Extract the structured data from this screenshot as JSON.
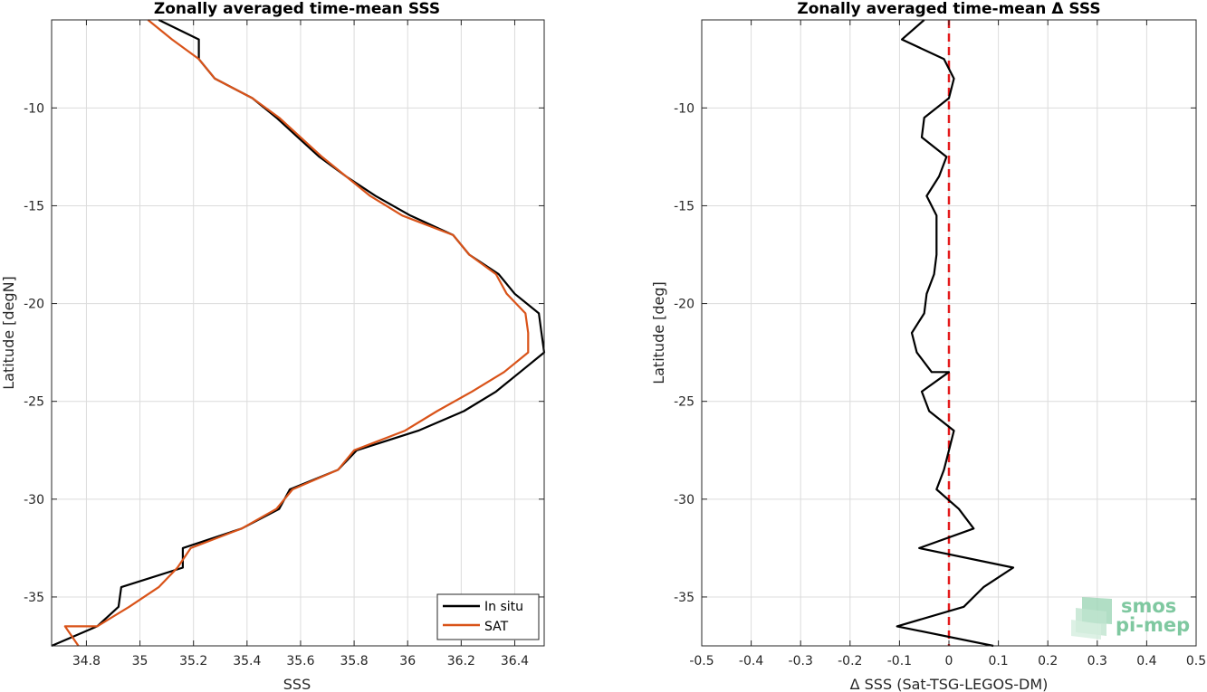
{
  "colors": {
    "insitu": "#000000",
    "sat": "#D95319",
    "zero_line": "#E41A1C",
    "grid": "#DCDCDC",
    "logo": "#7FC8A0"
  },
  "logo": {
    "line1": "smos",
    "line2": "pi-mep"
  },
  "chart_data": [
    {
      "type": "line",
      "title": "Zonally averaged time-mean SSS",
      "xlabel": "SSS",
      "ylabel": "Latitude [degN]",
      "xlim": [
        34.67,
        36.51
      ],
      "ylim": [
        -37.5,
        -5.5
      ],
      "xticks": [
        34.8,
        35,
        35.2,
        35.4,
        35.6,
        35.8,
        36,
        36.2,
        36.4
      ],
      "xtick_labels": [
        "34.8",
        "35",
        "35.2",
        "35.4",
        "35.6",
        "35.8",
        "36",
        "36.2",
        "36.4"
      ],
      "yticks": [
        -10,
        -15,
        -20,
        -25,
        -30,
        -35
      ],
      "ytick_labels": [
        "-10",
        "-15",
        "-20",
        "-25",
        "-30",
        "-35"
      ],
      "grid": true,
      "legend": "bottom-right",
      "legend_entries": [
        "In situ",
        "SAT"
      ],
      "series": [
        {
          "name": "In situ",
          "points": [
            [
              35.07,
              -5.5
            ],
            [
              35.22,
              -6.5
            ],
            [
              35.22,
              -7.5
            ],
            [
              35.28,
              -8.5
            ],
            [
              35.42,
              -9.5
            ],
            [
              35.51,
              -10.5
            ],
            [
              35.59,
              -11.5
            ],
            [
              35.67,
              -12.5
            ],
            [
              35.77,
              -13.5
            ],
            [
              35.88,
              -14.5
            ],
            [
              36.01,
              -15.5
            ],
            [
              36.17,
              -16.5
            ],
            [
              36.23,
              -17.5
            ],
            [
              36.34,
              -18.5
            ],
            [
              36.4,
              -19.5
            ],
            [
              36.49,
              -20.5
            ],
            [
              36.5,
              -21.5
            ],
            [
              36.51,
              -22.5
            ],
            [
              36.42,
              -23.5
            ],
            [
              36.33,
              -24.5
            ],
            [
              36.21,
              -25.5
            ],
            [
              36.04,
              -26.5
            ],
            [
              35.81,
              -27.5
            ],
            [
              35.74,
              -28.5
            ],
            [
              35.56,
              -29.5
            ],
            [
              35.52,
              -30.5
            ],
            [
              35.38,
              -31.5
            ],
            [
              35.16,
              -32.5
            ],
            [
              35.16,
              -33.5
            ],
            [
              34.93,
              -34.5
            ],
            [
              34.92,
              -35.5
            ],
            [
              34.84,
              -36.5
            ],
            [
              34.67,
              -37.5
            ]
          ]
        },
        {
          "name": "SAT",
          "points": [
            [
              35.03,
              -5.5
            ],
            [
              35.12,
              -6.5
            ],
            [
              35.22,
              -7.5
            ],
            [
              35.28,
              -8.5
            ],
            [
              35.42,
              -9.5
            ],
            [
              35.52,
              -10.5
            ],
            [
              35.6,
              -11.5
            ],
            [
              35.68,
              -12.5
            ],
            [
              35.77,
              -13.5
            ],
            [
              35.86,
              -14.5
            ],
            [
              35.98,
              -15.5
            ],
            [
              36.17,
              -16.5
            ],
            [
              36.23,
              -17.5
            ],
            [
              36.33,
              -18.5
            ],
            [
              36.37,
              -19.5
            ],
            [
              36.44,
              -20.5
            ],
            [
              36.45,
              -21.5
            ],
            [
              36.45,
              -22.5
            ],
            [
              36.36,
              -23.5
            ],
            [
              36.24,
              -24.5
            ],
            [
              36.11,
              -25.5
            ],
            [
              35.99,
              -26.5
            ],
            [
              35.8,
              -27.5
            ],
            [
              35.74,
              -28.5
            ],
            [
              35.57,
              -29.5
            ],
            [
              35.51,
              -30.5
            ],
            [
              35.38,
              -31.5
            ],
            [
              35.19,
              -32.5
            ],
            [
              35.14,
              -33.5
            ],
            [
              35.07,
              -34.5
            ],
            [
              34.96,
              -35.5
            ],
            [
              34.84,
              -36.5
            ],
            [
              34.72,
              -36.5
            ],
            [
              34.77,
              -37.5
            ]
          ]
        }
      ]
    },
    {
      "type": "line",
      "title": "Zonally averaged time-mean Δ SSS",
      "xlabel": "Δ SSS (Sat-TSG-LEGOS-DM)",
      "ylabel": "Latitude [deg]",
      "xlim": [
        -0.5,
        0.5
      ],
      "ylim": [
        -37.5,
        -5.5
      ],
      "xticks": [
        -0.5,
        -0.4,
        -0.3,
        -0.2,
        -0.1,
        0,
        0.1,
        0.2,
        0.3,
        0.4,
        0.5
      ],
      "xtick_labels": [
        "-0.5",
        "-0.4",
        "-0.3",
        "-0.2",
        "-0.1",
        "0",
        "0.1",
        "0.2",
        "0.3",
        "0.4",
        "0.5"
      ],
      "yticks": [
        -10,
        -15,
        -20,
        -25,
        -30,
        -35
      ],
      "ytick_labels": [
        "-10",
        "-15",
        "-20",
        "-25",
        "-30",
        "-35"
      ],
      "grid": true,
      "reference_line_x": 0,
      "series": [
        {
          "points": [
            [
              -0.05,
              -5.5
            ],
            [
              -0.095,
              -6.5
            ],
            [
              -0.01,
              -7.5
            ],
            [
              0.01,
              -8.5
            ],
            [
              0.0,
              -9.5
            ],
            [
              -0.05,
              -10.5
            ],
            [
              -0.055,
              -11.5
            ],
            [
              -0.005,
              -12.5
            ],
            [
              -0.02,
              -13.5
            ],
            [
              -0.045,
              -14.5
            ],
            [
              -0.025,
              -15.5
            ],
            [
              -0.025,
              -16.5
            ],
            [
              -0.025,
              -17.5
            ],
            [
              -0.03,
              -18.5
            ],
            [
              -0.045,
              -19.5
            ],
            [
              -0.05,
              -20.5
            ],
            [
              -0.075,
              -21.5
            ],
            [
              -0.065,
              -22.5
            ],
            [
              -0.035,
              -23.5
            ],
            [
              0.0,
              -23.5
            ],
            [
              -0.055,
              -24.5
            ],
            [
              -0.04,
              -25.5
            ],
            [
              0.01,
              -26.5
            ],
            [
              0.0,
              -27.5
            ],
            [
              -0.01,
              -28.5
            ],
            [
              -0.025,
              -29.5
            ],
            [
              0.02,
              -30.5
            ],
            [
              0.05,
              -31.5
            ],
            [
              -0.06,
              -32.5
            ],
            [
              0.13,
              -33.5
            ],
            [
              0.07,
              -34.5
            ],
            [
              0.03,
              -35.5
            ],
            [
              -0.105,
              -36.5
            ],
            [
              0.09,
              -37.5
            ]
          ]
        }
      ]
    }
  ]
}
